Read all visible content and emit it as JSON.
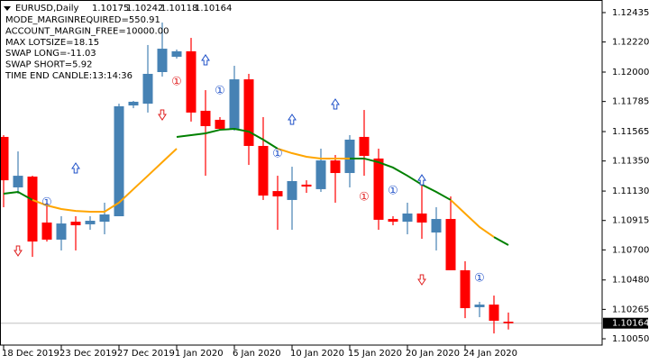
{
  "chart_data": {
    "type": "candlestick",
    "symbol": "EURUSD,Daily",
    "info": [
      "MODE_MARGINREQUIRED=550.91",
      "ACCOUNT_MARGIN_FREE=10000.00",
      "MAX LOTSIZE=18.15",
      "SWAP LONG=-11.03",
      "SWAP SHORT=5.92",
      "TIME END CANDLE:13:14:36"
    ],
    "categories": [
      "18 Dec 2019",
      null,
      null,
      null,
      "23 Dec 2019",
      null,
      null,
      null,
      "27 Dec 2019",
      null,
      null,
      null,
      "1 Jan 2020",
      null,
      null,
      null,
      "6 Jan 2020",
      null,
      null,
      null,
      "10 Jan 2020",
      null,
      null,
      null,
      "15 Jan 2020",
      null,
      null,
      null,
      "20 Jan 2020",
      null,
      null,
      null,
      "24 Jan 2020",
      null,
      null,
      null
    ],
    "open": [
      1.11526,
      1.11157,
      1.11236,
      1.109,
      1.10775,
      1.10906,
      1.10887,
      1.10906,
      1.10946,
      1.11756,
      1.11769,
      1.12,
      1.12112,
      1.12152,
      1.11717,
      1.11651,
      1.11585,
      1.11947,
      1.1146,
      1.1113,
      1.11065,
      1.11177,
      1.11144,
      1.11354,
      1.11262,
      1.11526,
      1.11368,
      1.10926,
      1.10906,
      1.10966,
      1.10827,
      1.10926,
      1.10551,
      1.10281,
      1.103,
      1.10175
    ],
    "high": [
      1.11539,
      1.1142,
      1.11242,
      1.11045,
      1.10946,
      1.10946,
      1.10946,
      1.11045,
      1.11769,
      1.11789,
      1.12198,
      1.12362,
      1.12165,
      1.1225,
      1.11868,
      1.11671,
      1.12046,
      1.11987,
      1.11671,
      1.11242,
      1.11308,
      1.11209,
      1.1144,
      1.11394,
      1.11539,
      1.11723,
      1.1144,
      1.10946,
      1.11045,
      1.11196,
      1.11012,
      1.11091,
      1.10617,
      1.1032,
      1.10366,
      1.10242
    ],
    "low": [
      1.11012,
      1.11111,
      1.10649,
      1.10761,
      1.10696,
      1.10696,
      1.10847,
      1.10814,
      1.10946,
      1.11736,
      1.11704,
      1.11967,
      1.12099,
      1.11638,
      1.11242,
      1.11572,
      1.11572,
      1.11321,
      1.11065,
      1.10847,
      1.10847,
      1.11117,
      1.11124,
      1.11045,
      1.11157,
      1.11242,
      1.10847,
      1.1088,
      1.10814,
      1.10781,
      1.10696,
      1.10551,
      1.10201,
      1.10208,
      1.10089,
      1.10118
    ],
    "close": [
      1.11209,
      1.11242,
      1.10761,
      1.10775,
      1.10893,
      1.1088,
      1.10913,
      1.10959,
      1.1175,
      1.11783,
      1.11987,
      1.12171,
      1.12152,
      1.11704,
      1.11605,
      1.11585,
      1.11947,
      1.1146,
      1.11097,
      1.11091,
      1.11203,
      1.11163,
      1.11354,
      1.11262,
      1.11506,
      1.11387,
      1.1092,
      1.10906,
      1.10966,
      1.109,
      1.10926,
      1.10551,
      1.10274,
      1.103,
      1.10182,
      1.10164
    ],
    "up_color": "#4682b4",
    "down_color": "#ff0000",
    "series": [
      {
        "color": "#008000",
        "values": [
          1.11111,
          1.11124,
          1.11065,
          null,
          null,
          null,
          null,
          null,
          null,
          null,
          null,
          null,
          1.11526,
          1.11539,
          1.11552,
          1.11578,
          1.11585,
          1.11565,
          1.11506,
          1.1144,
          null,
          null,
          null,
          null,
          1.11368,
          1.11368,
          1.11341,
          1.11302,
          1.11242,
          1.11177,
          1.11124,
          1.11065,
          null,
          null,
          1.10794,
          1.10735
        ]
      },
      {
        "color": "#ffa500",
        "values": [
          null,
          null,
          1.11065,
          1.11025,
          1.10999,
          1.10985,
          1.10979,
          1.10979,
          1.11045,
          1.11144,
          1.11242,
          1.11341,
          1.1144,
          null,
          null,
          null,
          null,
          null,
          null,
          1.1144,
          1.11407,
          1.11381,
          1.11368,
          1.11368,
          1.11368,
          null,
          null,
          null,
          null,
          null,
          null,
          1.11065,
          1.10966,
          1.10867,
          1.10794,
          null
        ]
      }
    ],
    "signal_text": "①",
    "signals": [
      {
        "kind": "up",
        "candle": 5,
        "price": 1.11295
      },
      {
        "kind": "up",
        "candle": 14,
        "price": 1.12086
      },
      {
        "kind": "up",
        "candle": 20,
        "price": 1.11651
      },
      {
        "kind": "up",
        "candle": 23,
        "price": 1.11763
      },
      {
        "kind": "up",
        "candle": 29,
        "price": 1.11209
      },
      {
        "kind": "down",
        "candle": 1,
        "price": 1.10696
      },
      {
        "kind": "down",
        "candle": 11,
        "price": 1.1169
      },
      {
        "kind": "down",
        "candle": 29,
        "price": 1.10485
      },
      {
        "kind": "one_blue",
        "candle": 3,
        "price": 1.11045
      },
      {
        "kind": "one_blue",
        "candle": 15,
        "price": 1.11862
      },
      {
        "kind": "one_blue",
        "candle": 19,
        "price": 1.11401
      },
      {
        "kind": "one_blue",
        "candle": 27,
        "price": 1.1113
      },
      {
        "kind": "one_blue",
        "candle": 33,
        "price": 1.10491
      },
      {
        "kind": "one_red",
        "candle": 12,
        "price": 1.11928
      },
      {
        "kind": "one_red",
        "candle": 25,
        "price": 1.11084
      }
    ],
    "ylim": [
      1.10004,
      1.12527
    ],
    "yticks": [
      1.12435,
      {
        "value": 1.1222,
        "label": "1.12220"
      },
      {
        "value": 1.12,
        "label": "1.12000"
      },
      1.11785,
      1.11565,
      {
        "value": 1.1135,
        "label": "1.11350"
      },
      {
        "value": 1.1113,
        "label": "1.11130"
      },
      1.10915,
      {
        "value": 1.107,
        "label": "1.10700"
      },
      {
        "value": 1.1048,
        "label": "1.10480"
      },
      1.10265,
      {
        "value": 1.1005,
        "label": "1.10050"
      }
    ],
    "price_line": true,
    "grid": false
  }
}
